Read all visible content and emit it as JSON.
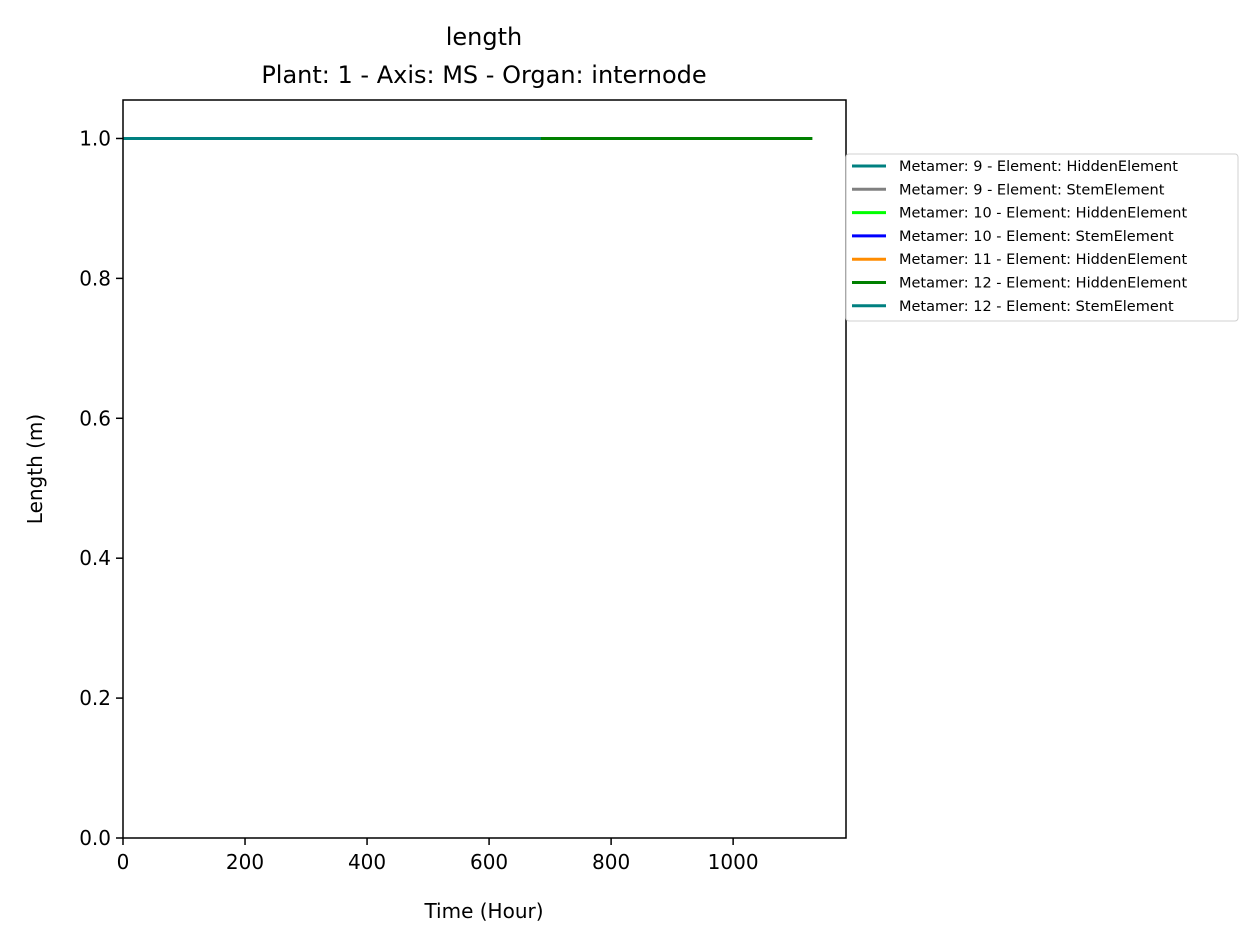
{
  "chart_data": {
    "type": "line",
    "title": "length",
    "subtitle": "Plant: 1 - Axis: MS - Organ: internode",
    "xlabel": "Time (Hour)",
    "ylabel": "Length (m)",
    "xlim": [
      0,
      1185
    ],
    "ylim": [
      0,
      1.055
    ],
    "x_ticks": [
      0,
      200,
      400,
      600,
      800,
      1000
    ],
    "y_ticks": [
      0.0,
      0.2,
      0.4,
      0.6,
      0.8,
      1.0
    ],
    "x_tick_labels": [
      "0",
      "200",
      "400",
      "600",
      "800",
      "1000"
    ],
    "y_tick_labels": [
      "0.0",
      "0.2",
      "0.4",
      "0.6",
      "0.8",
      "1.0"
    ],
    "grid": false,
    "legend_position": "outside-right",
    "series": [
      {
        "name": "Metamer: 9 - Element: HiddenElement",
        "color": "#008080",
        "x": [
          0,
          685
        ],
        "y": [
          1.0,
          1.0
        ]
      },
      {
        "name": "Metamer: 9 - Element: StemElement",
        "color": "#808080",
        "x": [
          0,
          685
        ],
        "y": [
          1.0,
          1.0
        ]
      },
      {
        "name": "Metamer: 10 - Element: HiddenElement",
        "color": "#00ff00",
        "x": [
          0,
          685
        ],
        "y": [
          1.0,
          1.0
        ]
      },
      {
        "name": "Metamer: 10 - Element: StemElement",
        "color": "#0000ff",
        "x": [
          0,
          685
        ],
        "y": [
          1.0,
          1.0
        ]
      },
      {
        "name": "Metamer: 11 - Element: HiddenElement",
        "color": "#ff8c00",
        "x": [
          0,
          685
        ],
        "y": [
          1.0,
          1.0
        ]
      },
      {
        "name": "Metamer: 12 - Element: HiddenElement",
        "color": "#008000",
        "x": [
          0,
          1130
        ],
        "y": [
          1.0,
          1.0
        ]
      },
      {
        "name": "Metamer: 12 - Element: StemElement",
        "color": "#008080",
        "x": [
          0,
          685
        ],
        "y": [
          1.0,
          1.0
        ]
      }
    ]
  }
}
